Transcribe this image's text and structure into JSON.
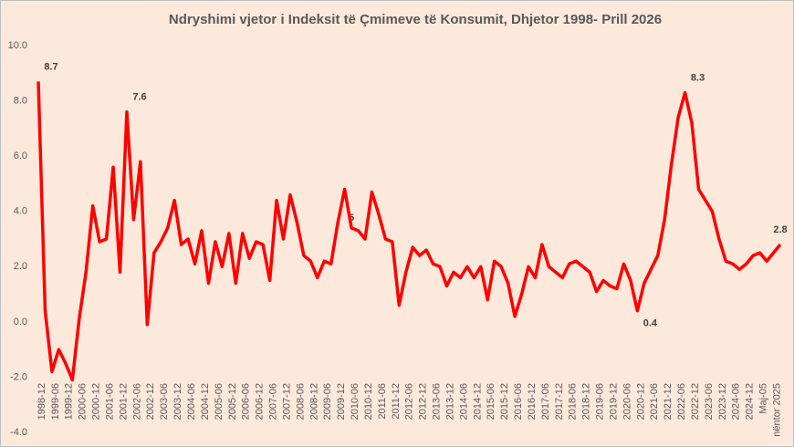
{
  "chart_data": {
    "type": "line",
    "title": "Ndryshimi vjetor i Indeksit të Çmimeve të Konsumit, Dhjetor 1998- Prill 2026",
    "categories": [
      "1998-12",
      null,
      "1999-06",
      null,
      "1999-12",
      null,
      "2000-06",
      null,
      "2000-12",
      null,
      "2001-06",
      null,
      "2001-12",
      null,
      "2002-06",
      null,
      "2002-12",
      null,
      "2003-06",
      null,
      "2003-12",
      null,
      "2004-06",
      null,
      "2004-12",
      null,
      "2005-06",
      null,
      "2005-12",
      null,
      "2006-06",
      null,
      "2006-12",
      null,
      "2007-06",
      null,
      "2007-12",
      null,
      "2008-06",
      null,
      "2008-12",
      null,
      "2009-06",
      null,
      "2009-12",
      null,
      "2010-06",
      null,
      "2010-12",
      null,
      "2011-06",
      null,
      "2011-12",
      null,
      "2012-06",
      null,
      "2012-12",
      null,
      "2013-06",
      null,
      "2013-12",
      null,
      "2014-06",
      null,
      "2014-12",
      null,
      "2015-06",
      null,
      "2015-12",
      null,
      "2016-06",
      null,
      "2016-12",
      null,
      "2017-06",
      null,
      "2017-12",
      null,
      "2018-06",
      null,
      "2018-12",
      null,
      "2019-06",
      null,
      "2019-12",
      null,
      "2020-06",
      null,
      "2020-12",
      null,
      "2021-06",
      null,
      "2021-12",
      null,
      "2022-06",
      null,
      "2022-12",
      null,
      "2023-06",
      null,
      "2023-12",
      null,
      "2024-06",
      null,
      "2024-12",
      null,
      "Maj-05",
      null,
      "nëntor 2025",
      null
    ],
    "series": [
      {
        "name": "Ndryshimi vjetor",
        "color": "#ff0000",
        "values": [
          8.7,
          0.4,
          -1.8,
          -1.0,
          -1.5,
          -2.1,
          0.1,
          1.8,
          4.2,
          2.9,
          3.0,
          5.6,
          1.8,
          7.6,
          3.7,
          5.8,
          -0.1,
          2.5,
          2.9,
          3.4,
          4.4,
          2.8,
          3.0,
          2.1,
          3.3,
          1.4,
          2.9,
          2.0,
          3.2,
          1.4,
          3.2,
          2.3,
          2.9,
          2.8,
          1.5,
          4.4,
          3.0,
          4.6,
          3.6,
          2.4,
          2.2,
          1.6,
          2.2,
          2.1,
          3.6,
          4.8,
          3.4,
          3.3,
          3.0,
          4.7,
          3.9,
          3.0,
          2.9,
          0.6,
          1.8,
          2.7,
          2.4,
          2.6,
          2.1,
          2.0,
          1.3,
          1.8,
          1.6,
          2.0,
          1.6,
          2.0,
          0.8,
          2.2,
          2.0,
          1.4,
          0.2,
          1.0,
          2.0,
          1.6,
          2.8,
          2.0,
          1.8,
          1.6,
          2.1,
          2.2,
          2.0,
          1.8,
          1.1,
          1.5,
          1.3,
          1.2,
          2.1,
          1.5,
          0.4,
          1.4,
          1.9,
          2.4,
          3.7,
          5.7,
          7.4,
          8.3,
          7.2,
          4.8,
          4.4,
          4.0,
          3.0,
          2.2,
          2.1,
          1.9,
          2.1,
          2.4,
          2.5,
          2.2,
          2.5,
          2.8
        ],
        "value_labels": [
          "8.7",
          null,
          null,
          null,
          null,
          null,
          null,
          null,
          null,
          null,
          null,
          null,
          null,
          "7.6",
          null,
          null,
          null,
          null,
          null,
          null,
          null,
          null,
          null,
          null,
          null,
          null,
          null,
          null,
          null,
          null,
          null,
          null,
          null,
          null,
          null,
          null,
          null,
          null,
          null,
          null,
          null,
          null,
          null,
          null,
          null,
          null,
          null,
          null,
          null,
          null,
          null,
          null,
          null,
          null,
          null,
          null,
          null,
          null,
          null,
          null,
          null,
          null,
          null,
          null,
          null,
          null,
          null,
          null,
          null,
          null,
          null,
          null,
          null,
          null,
          null,
          null,
          null,
          null,
          null,
          null,
          null,
          null,
          null,
          null,
          null,
          null,
          null,
          null,
          "0.4",
          null,
          null,
          null,
          null,
          null,
          null,
          "8.3",
          null,
          null,
          null,
          null,
          null,
          null,
          null,
          null,
          null,
          null,
          null,
          null,
          null,
          "2.8"
        ]
      }
    ],
    "annotations": [
      "5"
    ],
    "ylim": [
      -4,
      10
    ],
    "yticks": [
      {
        "value": -4,
        "label": "-4.0"
      },
      {
        "value": -2,
        "label": "-2.0"
      },
      {
        "value": 0,
        "label": "0.0"
      },
      {
        "value": 2,
        "label": "2.0"
      },
      {
        "value": 4,
        "label": "4.0"
      },
      {
        "value": 6,
        "label": "6.0"
      },
      {
        "value": 8,
        "label": "8.0"
      },
      {
        "value": 10,
        "label": "10.0"
      }
    ],
    "grid": false
  }
}
